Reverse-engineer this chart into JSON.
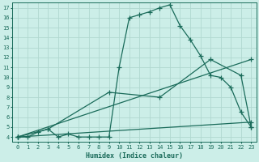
{
  "xlabel": "Humidex (Indice chaleur)",
  "bg_color": "#cceee8",
  "grid_color": "#b0d8d0",
  "line_color": "#1a6b5a",
  "xlim": [
    -0.5,
    23.5
  ],
  "ylim": [
    3.5,
    17.5
  ],
  "xticks": [
    0,
    1,
    2,
    3,
    4,
    5,
    6,
    7,
    8,
    9,
    10,
    11,
    12,
    13,
    14,
    15,
    16,
    17,
    18,
    19,
    20,
    21,
    22,
    23
  ],
  "yticks": [
    4,
    5,
    6,
    7,
    8,
    9,
    10,
    11,
    12,
    13,
    14,
    15,
    16,
    17
  ],
  "line1_x": [
    0,
    1,
    2,
    3,
    4,
    5,
    6,
    7,
    8,
    9,
    10,
    11,
    12,
    13,
    14,
    15,
    16,
    17,
    18,
    19,
    20,
    21,
    22,
    23
  ],
  "line1_y": [
    4.0,
    4.0,
    4.5,
    4.8,
    4.0,
    4.3,
    4.0,
    4.0,
    4.0,
    4.0,
    11.0,
    16.0,
    16.3,
    16.6,
    17.0,
    17.3,
    15.2,
    13.8,
    12.2,
    10.2,
    10.0,
    9.0,
    6.5,
    5.0
  ],
  "line2_x": [
    0,
    3,
    9,
    14,
    19,
    22,
    23
  ],
  "line2_y": [
    4.0,
    4.8,
    8.5,
    8.0,
    11.8,
    10.2,
    5.0
  ],
  "line3_x": [
    0,
    23
  ],
  "line3_y": [
    4.0,
    11.8
  ],
  "line4_x": [
    0,
    23
  ],
  "line4_y": [
    4.0,
    5.5
  ],
  "marker": "+",
  "markersize": 4,
  "linewidth": 0.9
}
